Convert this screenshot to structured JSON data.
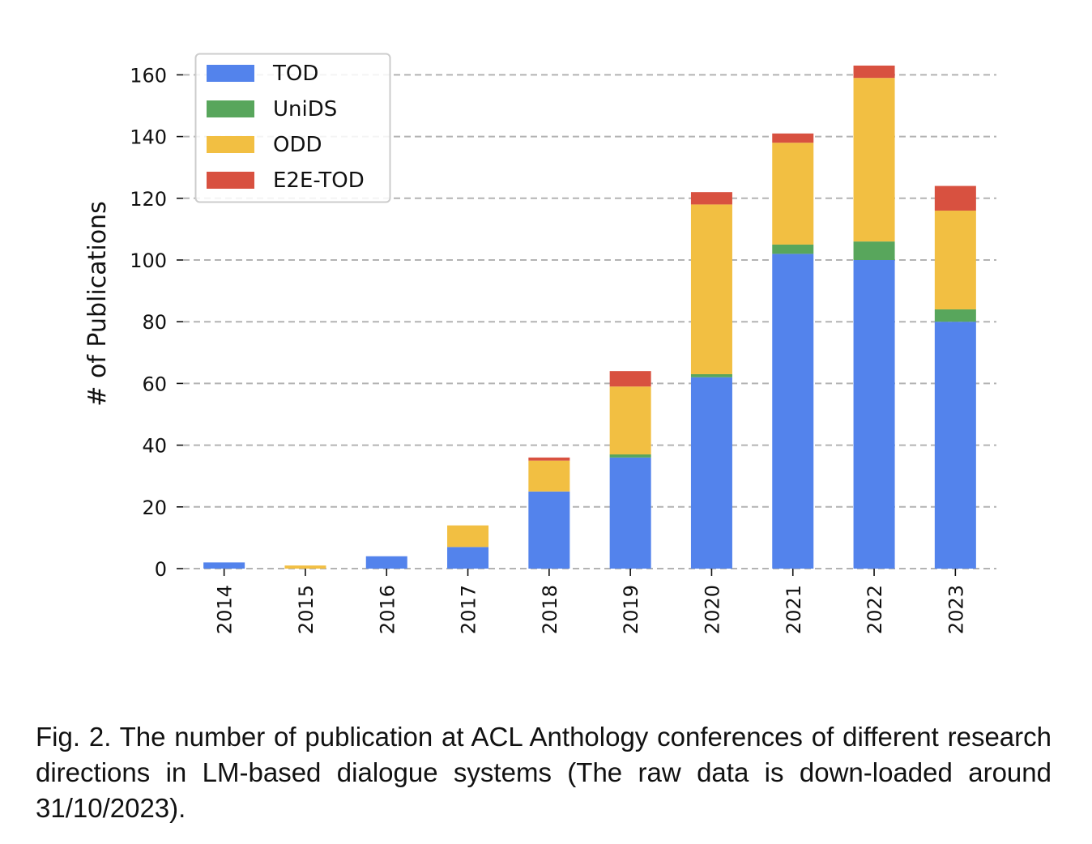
{
  "chart_data": {
    "type": "bar",
    "stacked": true,
    "categories": [
      "2014",
      "2015",
      "2016",
      "2017",
      "2018",
      "2019",
      "2020",
      "2021",
      "2022",
      "2023"
    ],
    "series": [
      {
        "name": "TOD",
        "color": "#5383ec",
        "values": [
          2,
          0,
          4,
          7,
          25,
          36,
          62,
          102,
          100,
          80
        ]
      },
      {
        "name": "UniDS",
        "color": "#58a65c",
        "values": [
          0,
          0,
          0,
          0,
          0,
          1,
          1,
          3,
          6,
          4
        ]
      },
      {
        "name": "ODD",
        "color": "#f2bf42",
        "values": [
          0,
          1,
          0,
          7,
          10,
          22,
          55,
          33,
          53,
          32
        ]
      },
      {
        "name": "E2E-TOD",
        "color": "#d85140",
        "values": [
          0,
          0,
          0,
          0,
          1,
          5,
          4,
          3,
          4,
          8
        ]
      }
    ],
    "ylabel": "# of Publications",
    "xlabel": "",
    "ylim": [
      0,
      165
    ],
    "yticks": [
      0,
      20,
      40,
      60,
      80,
      100,
      120,
      140,
      160
    ],
    "grid": "horizontal dashed",
    "legend_position": "top-left"
  },
  "caption": "Fig. 2. The number of publication at ACL Anthology conferences of different research directions in LM-based dialogue systems (The raw data is down-loaded around 31/10/2023)."
}
